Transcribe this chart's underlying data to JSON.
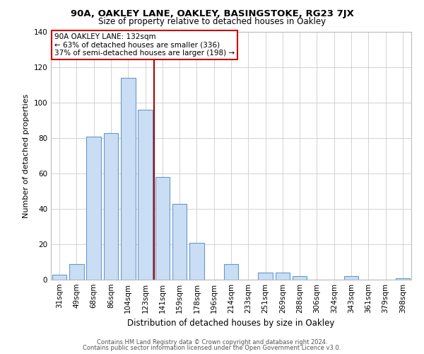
{
  "title1": "90A, OAKLEY LANE, OAKLEY, BASINGSTOKE, RG23 7JX",
  "title2": "Size of property relative to detached houses in Oakley",
  "xlabel": "Distribution of detached houses by size in Oakley",
  "ylabel": "Number of detached properties",
  "bar_labels": [
    "31sqm",
    "49sqm",
    "68sqm",
    "86sqm",
    "104sqm",
    "123sqm",
    "141sqm",
    "159sqm",
    "178sqm",
    "196sqm",
    "214sqm",
    "233sqm",
    "251sqm",
    "269sqm",
    "288sqm",
    "306sqm",
    "324sqm",
    "343sqm",
    "361sqm",
    "379sqm",
    "398sqm"
  ],
  "bar_values": [
    3,
    9,
    81,
    83,
    114,
    96,
    58,
    43,
    21,
    0,
    9,
    0,
    4,
    4,
    2,
    0,
    0,
    2,
    0,
    0,
    1
  ],
  "bar_color": "#c9ddf5",
  "bar_edge_color": "#6699cc",
  "ylim": [
    0,
    140
  ],
  "yticks": [
    0,
    20,
    40,
    60,
    80,
    100,
    120,
    140
  ],
  "vline_x": 5.5,
  "vline_color": "#aa0000",
  "annotation_title": "90A OAKLEY LANE: 132sqm",
  "annotation_line1": "← 63% of detached houses are smaller (336)",
  "annotation_line2": "37% of semi-detached houses are larger (198) →",
  "annotation_box_color": "#ffffff",
  "annotation_box_edge": "#cc0000",
  "footer1": "Contains HM Land Registry data © Crown copyright and database right 2024.",
  "footer2": "Contains public sector information licensed under the Open Government Licence v3.0."
}
